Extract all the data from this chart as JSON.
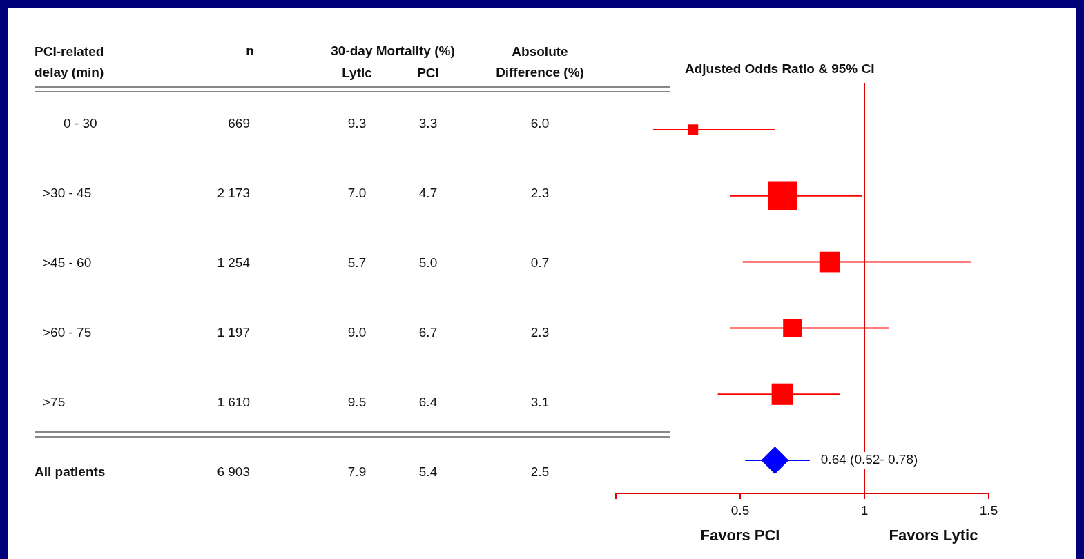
{
  "chart_data": [
    {
      "type": "other",
      "title": "30-day Mortality (%)",
      "ylabel": "PCI-related delay (min)",
      "categories": [
        "0 - 30",
        ">30 - 45",
        ">45 - 60",
        ">60 - 75",
        ">75",
        "All patients"
      ],
      "series": [
        {
          "name": "n",
          "values": [
            669,
            2173,
            1254,
            1197,
            1610,
            6903
          ],
          "value_labels": [
            "669",
            "2 173",
            "1 254",
            "1 197",
            "1 610",
            "6 903"
          ]
        },
        {
          "name": "Lytic",
          "values": [
            9.3,
            7.0,
            5.7,
            9.0,
            9.5,
            7.9
          ],
          "value_labels": [
            "9.3",
            "7.0",
            "5.7",
            "9.0",
            "9.5",
            "7.9"
          ]
        },
        {
          "name": "PCI",
          "values": [
            3.3,
            4.7,
            5.0,
            6.7,
            6.4,
            5.4
          ],
          "value_labels": [
            "3.3",
            "4.7",
            "5.0",
            "6.7",
            "6.4",
            "5.4"
          ]
        },
        {
          "name": "Absolute Difference (%)",
          "values": [
            6.0,
            2.3,
            0.7,
            2.3,
            3.1,
            2.5
          ],
          "value_labels": [
            "6.0",
            "2.3",
            "0.7",
            "2.3",
            "3.1",
            "2.5"
          ]
        }
      ]
    },
    {
      "type": "bubble",
      "orientation": "horizontal",
      "title": "Adjusted Odds Ratio & 95% CI",
      "categories": [
        null,
        null,
        null,
        null,
        null,
        null
      ],
      "tick_labels": "x",
      "grid": false,
      "legend": false,
      "xlim": [
        0,
        1.5
      ],
      "xticks": [
        {
          "value": 0,
          "label": null
        },
        0.5,
        1,
        1.5
      ],
      "series": [
        {
          "marker": "square",
          "color": "#ff0000",
          "values": [
            0.31,
            0.67,
            0.86,
            0.71,
            0.67,
            null
          ],
          "sizes": [
            0.13,
            1,
            0.49,
            0.4,
            0.54,
            null
          ],
          "errors": [
            [
              0.15,
              0.64
            ],
            [
              0.46,
              0.99
            ],
            [
              0.51,
              1.43
            ],
            [
              0.46,
              1.1
            ],
            [
              0.41,
              0.9
            ],
            null
          ]
        },
        {
          "type": "scatter",
          "marker": "diamond",
          "color": "#0000ff",
          "values": [
            null,
            null,
            null,
            null,
            null,
            0.64
          ],
          "errors": [
            null,
            null,
            null,
            null,
            null,
            [
              0.52,
              0.78
            ]
          ]
        }
      ],
      "ref_lines": [
        {
          "axis": "x",
          "value": 1,
          "color": "#dd0000"
        }
      ],
      "annotations": [
        "0.64 (0.52- 0.78)",
        "Favors PCI",
        "Favors Lytic"
      ]
    }
  ]
}
